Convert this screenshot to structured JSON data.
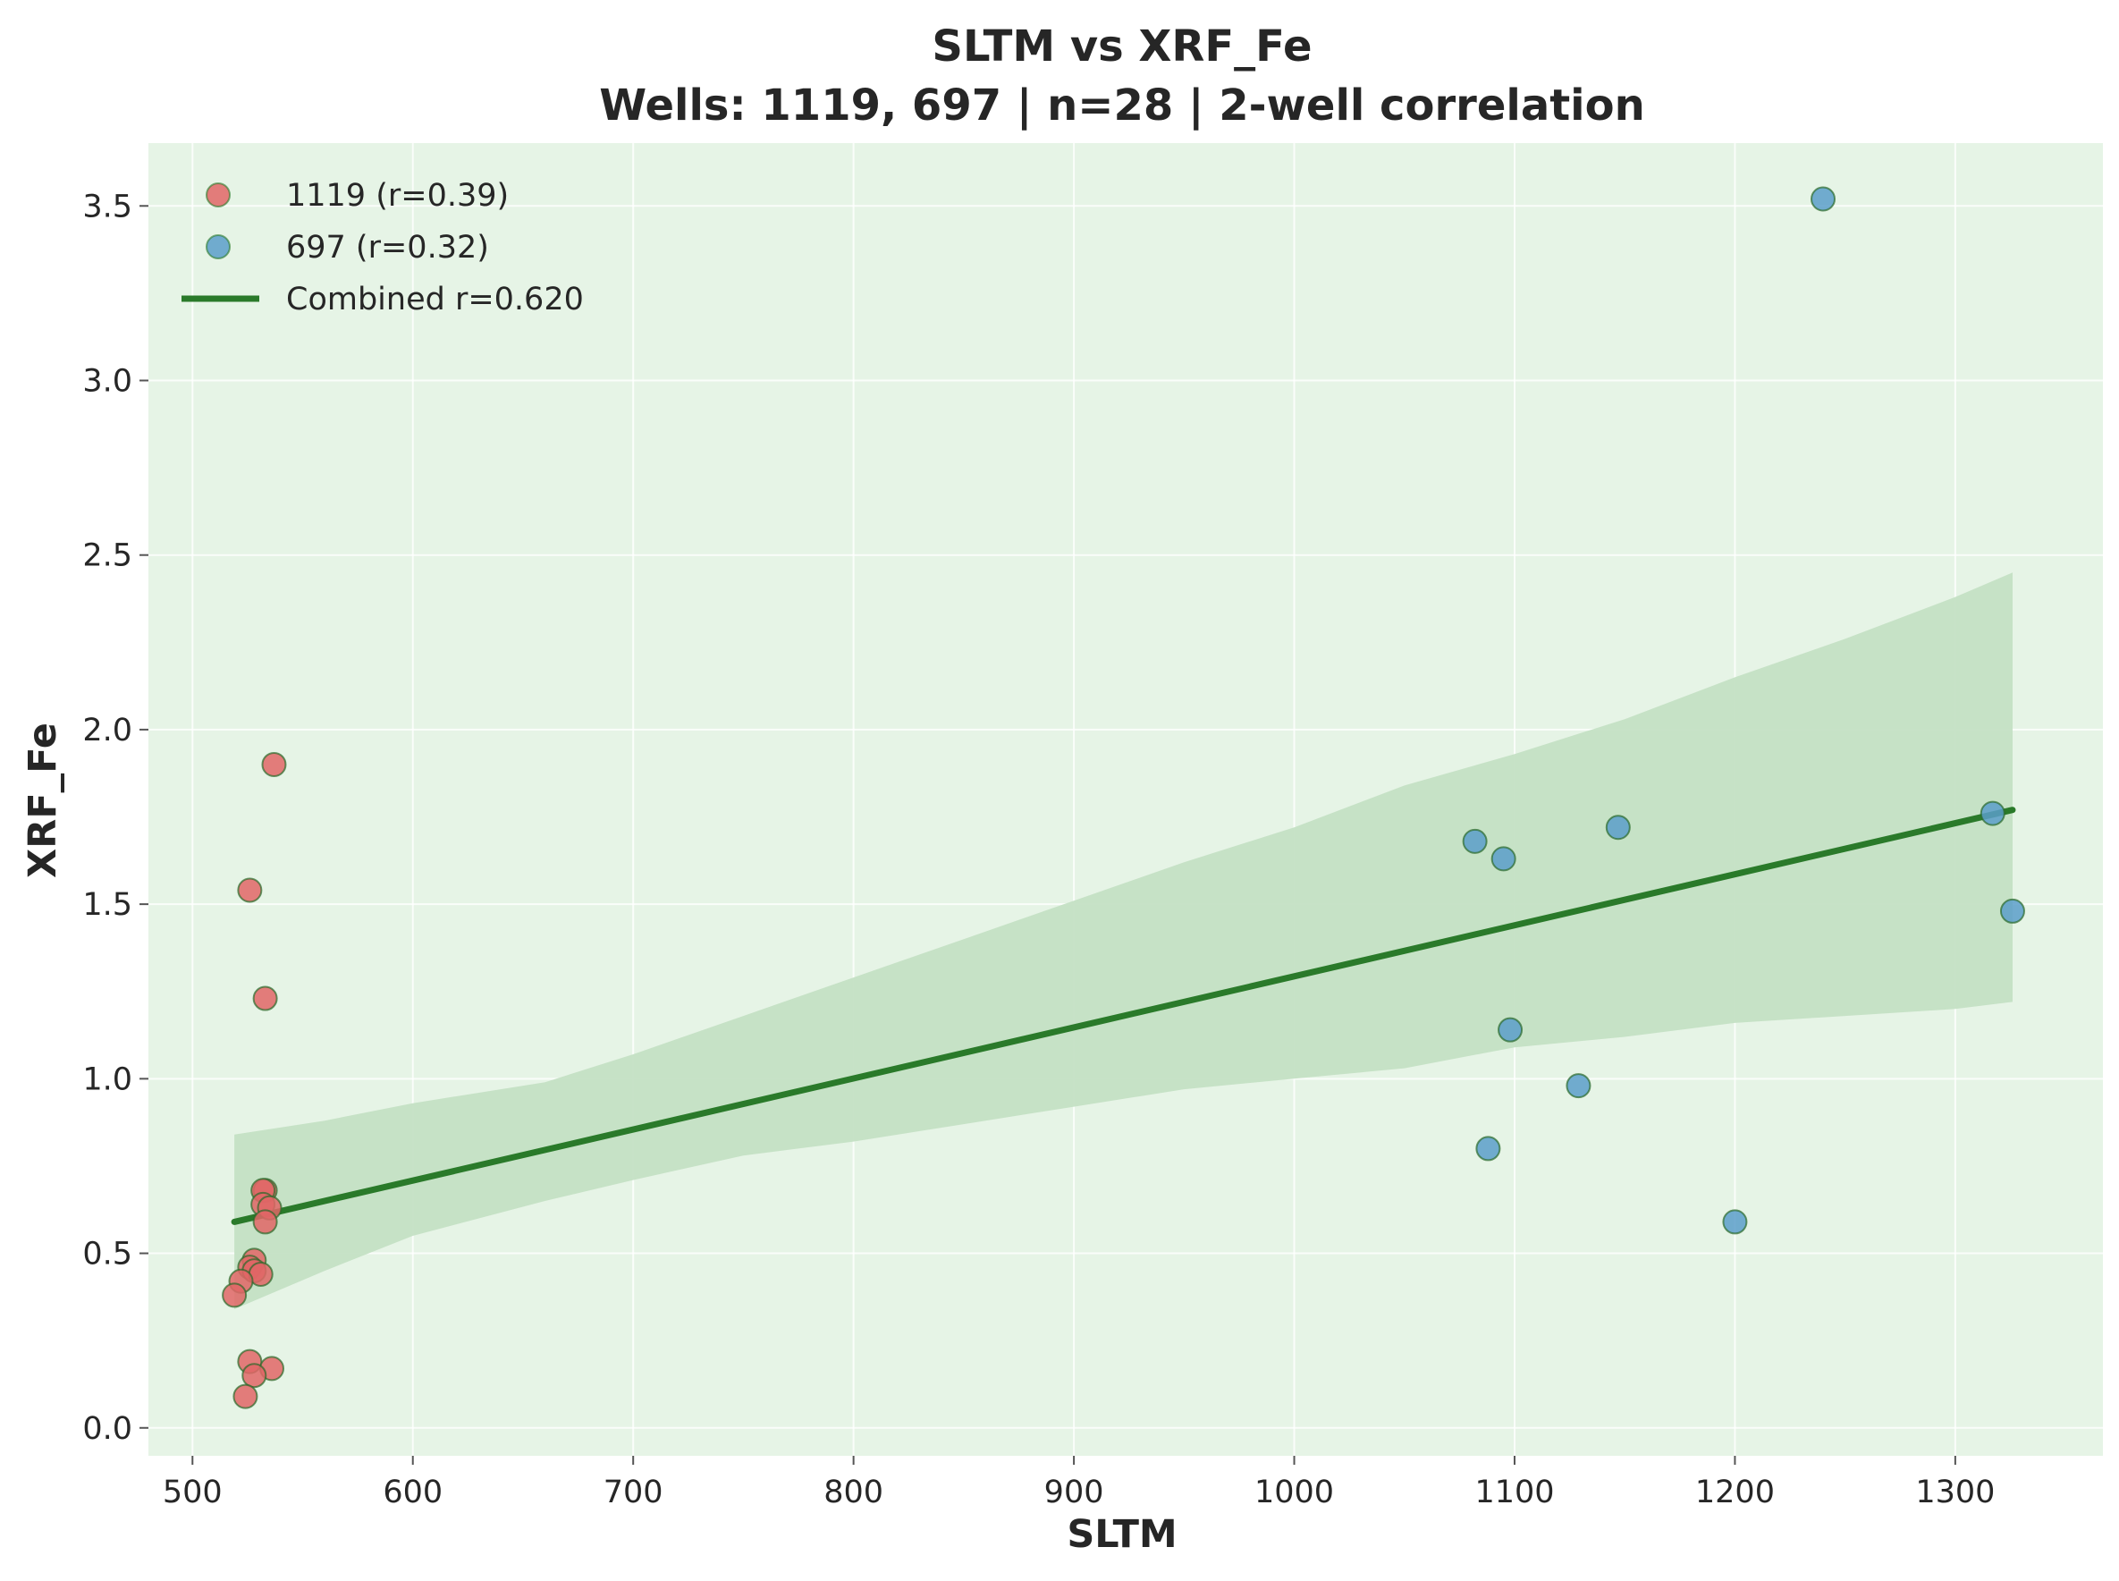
{
  "chart_data": {
    "type": "scatter",
    "title": "SLTM vs XRF_Fe",
    "subtitle": "Wells: 1119, 697 | n=28 | 2-well correlation",
    "xlabel": "SLTM",
    "ylabel": "XRF_Fe",
    "xlim": [
      480,
      1367
    ],
    "ylim": [
      -0.08,
      3.68
    ],
    "xticks": [
      "500",
      "600",
      "700",
      "800",
      "900",
      "1000",
      "1100",
      "1200",
      "1300"
    ],
    "yticks": [
      "0.0",
      "0.5",
      "1.0",
      "1.5",
      "2.0",
      "2.5",
      "3.0",
      "3.5"
    ],
    "grid": true,
    "background": "#e6f4e6",
    "legend_position": "top-left",
    "series": [
      {
        "name": "1119 (r=0.39)",
        "color": "#e06666",
        "points": [
          [
            537,
            1.9
          ],
          [
            526,
            1.54
          ],
          [
            533,
            1.23
          ],
          [
            533,
            0.68
          ],
          [
            532,
            0.68
          ],
          [
            532,
            0.64
          ],
          [
            535,
            0.63
          ],
          [
            533,
            0.59
          ],
          [
            528,
            0.48
          ],
          [
            526,
            0.46
          ],
          [
            528,
            0.45
          ],
          [
            531,
            0.44
          ],
          [
            522,
            0.42
          ],
          [
            519,
            0.38
          ],
          [
            526,
            0.19
          ],
          [
            536,
            0.17
          ],
          [
            528,
            0.15
          ],
          [
            524,
            0.09
          ]
        ]
      },
      {
        "name": "697 (r=0.32)",
        "color": "#5b9ec9",
        "points": [
          [
            1240,
            3.52
          ],
          [
            1317,
            1.76
          ],
          [
            1147,
            1.72
          ],
          [
            1082,
            1.68
          ],
          [
            1095,
            1.63
          ],
          [
            1326,
            1.48
          ],
          [
            1098,
            1.14
          ],
          [
            1129,
            0.98
          ],
          [
            1088,
            0.8
          ],
          [
            1200,
            0.59
          ]
        ]
      }
    ],
    "fit": {
      "name": "Combined r=0.620",
      "color": "#2a7a2a",
      "x": [
        519,
        1326
      ],
      "y": [
        0.59,
        1.77
      ]
    },
    "confidence_band": {
      "color": "#c4e0c4",
      "x": [
        519,
        560,
        600,
        660,
        700,
        750,
        800,
        850,
        900,
        950,
        1000,
        1050,
        1100,
        1150,
        1200,
        1250,
        1300,
        1326
      ],
      "upper": [
        0.84,
        0.88,
        0.93,
        0.99,
        1.07,
        1.18,
        1.29,
        1.4,
        1.51,
        1.62,
        1.72,
        1.84,
        1.93,
        2.03,
        2.15,
        2.26,
        2.38,
        2.45
      ],
      "lower": [
        0.34,
        0.45,
        0.55,
        0.65,
        0.71,
        0.78,
        0.82,
        0.87,
        0.92,
        0.97,
        1.0,
        1.03,
        1.09,
        1.12,
        1.16,
        1.18,
        1.2,
        1.22
      ]
    }
  }
}
